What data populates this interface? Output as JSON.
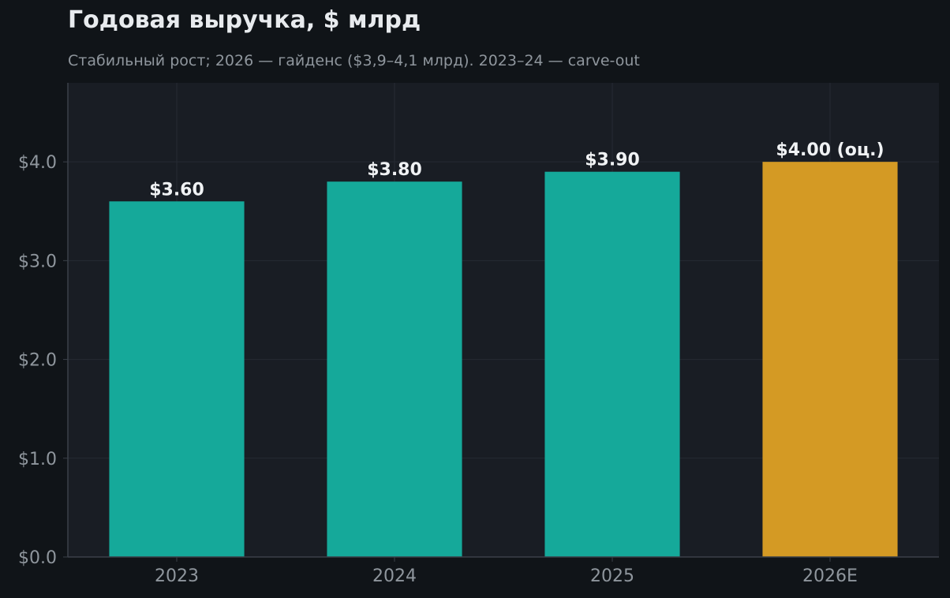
{
  "chart_data": {
    "type": "bar",
    "title": "Годовая выручка, $ млрд",
    "subtitle": "Стабильный рост; 2026 — гайденс ($3,9–4,1 млрд). 2023–24 — carve-out",
    "categories": [
      "2023",
      "2024",
      "2025",
      "2026E"
    ],
    "values": [
      3.6,
      3.8,
      3.9,
      4.0
    ],
    "data_labels": [
      "$3.60",
      "$3.80",
      "$3.90",
      "$4.00 (оц.)"
    ],
    "estimate_flags": [
      false,
      false,
      false,
      true
    ],
    "ylim": [
      0,
      4.8
    ],
    "yticks": [
      0,
      1,
      2,
      3,
      4
    ],
    "ytick_labels": [
      "$0.0",
      "$1.0",
      "$2.0",
      "$3.0",
      "$4.0"
    ],
    "xlabel": "",
    "ylabel": "",
    "grid": true,
    "colors": {
      "actual": "#15a99a",
      "estimate": "#d49a24",
      "plot_bg": "#191d24",
      "page_bg": "#101418",
      "grid": "#262b33",
      "axis": "#3a4049",
      "tick_text": "#8f969d",
      "label_text": "#f0f2f4"
    }
  }
}
